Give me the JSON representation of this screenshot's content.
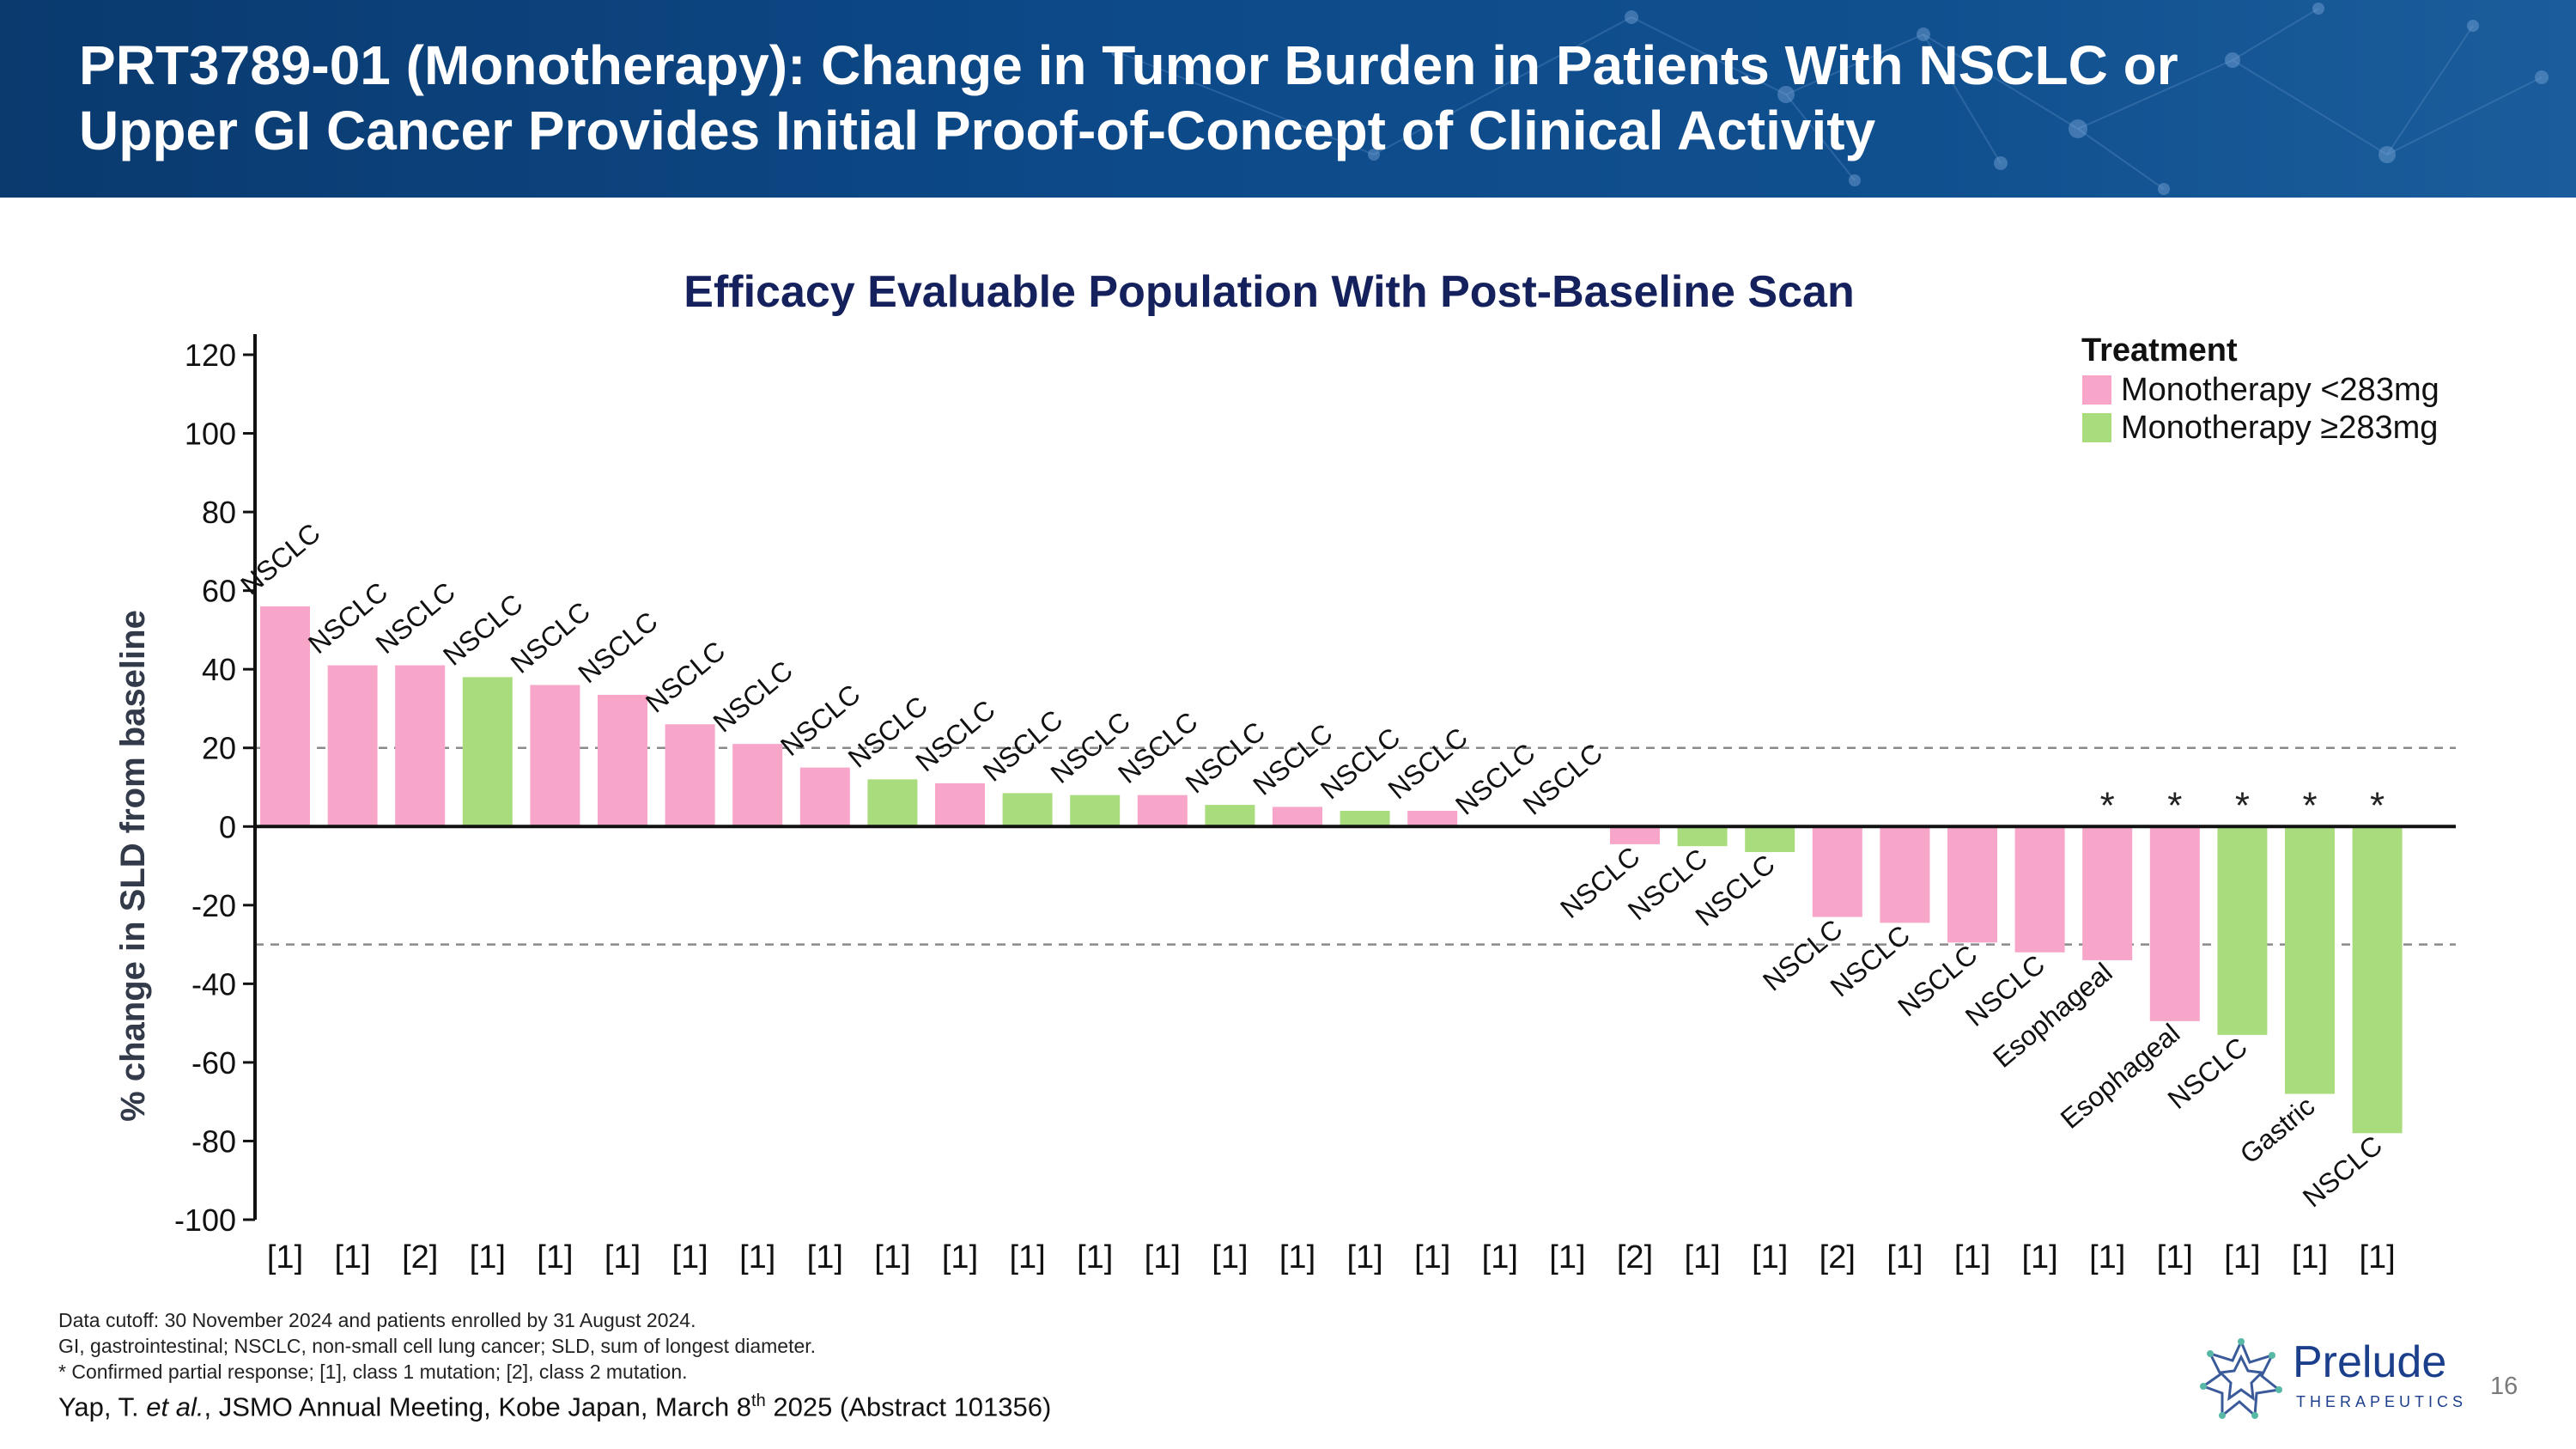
{
  "slide": {
    "title_line1": "PRT3789-01 (Monotherapy): Change in Tumor Burden in Patients With NSCLC or",
    "title_line2": "Upper GI Cancer Provides Initial Proof-of-Concept of Clinical Activity",
    "page_number": "16"
  },
  "chart_data": {
    "type": "bar",
    "title": "Efficacy Evaluable Population With Post-Baseline Scan",
    "xlabel": "",
    "ylabel": "% change in SLD from baseline",
    "ylim": [
      -100,
      120
    ],
    "yticks": [
      120,
      100,
      80,
      60,
      40,
      20,
      0,
      -20,
      -40,
      -60,
      -80,
      -100
    ],
    "reference_lines": [
      20,
      -30
    ],
    "legend": {
      "title": "Treatment",
      "position": "top-right",
      "entries": [
        {
          "label": "Monotherapy <283mg",
          "color": "#f7a5c9"
        },
        {
          "label": "Monotherapy ≥283mg",
          "color": "#a9dc7d"
        }
      ]
    },
    "bars": [
      {
        "value": 56,
        "group": "low",
        "tumor": "NSCLC",
        "mutation": "[1]",
        "confirmed_pr": false
      },
      {
        "value": 41,
        "group": "low",
        "tumor": "NSCLC",
        "mutation": "[1]",
        "confirmed_pr": false
      },
      {
        "value": 41,
        "group": "low",
        "tumor": "NSCLC",
        "mutation": "[2]",
        "confirmed_pr": false
      },
      {
        "value": 38,
        "group": "high",
        "tumor": "NSCLC",
        "mutation": "[1]",
        "confirmed_pr": false
      },
      {
        "value": 36,
        "group": "low",
        "tumor": "NSCLC",
        "mutation": "[1]",
        "confirmed_pr": false
      },
      {
        "value": 33.5,
        "group": "low",
        "tumor": "NSCLC",
        "mutation": "[1]",
        "confirmed_pr": false
      },
      {
        "value": 26,
        "group": "low",
        "tumor": "NSCLC",
        "mutation": "[1]",
        "confirmed_pr": false
      },
      {
        "value": 21,
        "group": "low",
        "tumor": "NSCLC",
        "mutation": "[1]",
        "confirmed_pr": false
      },
      {
        "value": 15,
        "group": "low",
        "tumor": "NSCLC",
        "mutation": "[1]",
        "confirmed_pr": false
      },
      {
        "value": 12,
        "group": "high",
        "tumor": "NSCLC",
        "mutation": "[1]",
        "confirmed_pr": false
      },
      {
        "value": 11,
        "group": "low",
        "tumor": "NSCLC",
        "mutation": "[1]",
        "confirmed_pr": false
      },
      {
        "value": 8.5,
        "group": "high",
        "tumor": "NSCLC",
        "mutation": "[1]",
        "confirmed_pr": false
      },
      {
        "value": 8,
        "group": "high",
        "tumor": "NSCLC",
        "mutation": "[1]",
        "confirmed_pr": false
      },
      {
        "value": 8,
        "group": "low",
        "tumor": "NSCLC",
        "mutation": "[1]",
        "confirmed_pr": false
      },
      {
        "value": 5.5,
        "group": "high",
        "tumor": "NSCLC",
        "mutation": "[1]",
        "confirmed_pr": false
      },
      {
        "value": 5,
        "group": "low",
        "tumor": "NSCLC",
        "mutation": "[1]",
        "confirmed_pr": false
      },
      {
        "value": 4,
        "group": "high",
        "tumor": "NSCLC",
        "mutation": "[1]",
        "confirmed_pr": false
      },
      {
        "value": 4,
        "group": "low",
        "tumor": "NSCLC",
        "mutation": "[1]",
        "confirmed_pr": false
      },
      {
        "value": 0,
        "group": "low",
        "tumor": "NSCLC",
        "mutation": "[1]",
        "confirmed_pr": false
      },
      {
        "value": 0,
        "group": "low",
        "tumor": "NSCLC",
        "mutation": "[1]",
        "confirmed_pr": false
      },
      {
        "value": -4.5,
        "group": "low",
        "tumor": "NSCLC",
        "mutation": "[2]",
        "confirmed_pr": false
      },
      {
        "value": -5,
        "group": "high",
        "tumor": "NSCLC",
        "mutation": "[1]",
        "confirmed_pr": false
      },
      {
        "value": -6.5,
        "group": "high",
        "tumor": "NSCLC",
        "mutation": "[1]",
        "confirmed_pr": false
      },
      {
        "value": -23,
        "group": "low",
        "tumor": "NSCLC",
        "mutation": "[2]",
        "confirmed_pr": false
      },
      {
        "value": -24.5,
        "group": "low",
        "tumor": "NSCLC",
        "mutation": "[1]",
        "confirmed_pr": false
      },
      {
        "value": -29.5,
        "group": "low",
        "tumor": "NSCLC",
        "mutation": "[1]",
        "confirmed_pr": false
      },
      {
        "value": -32,
        "group": "low",
        "tumor": "NSCLC",
        "mutation": "[1]",
        "confirmed_pr": false
      },
      {
        "value": -34,
        "group": "low",
        "tumor": "Esophageal",
        "mutation": "[1]",
        "confirmed_pr": true
      },
      {
        "value": -49.5,
        "group": "low",
        "tumor": "Esophageal",
        "mutation": "[1]",
        "confirmed_pr": true
      },
      {
        "value": -53,
        "group": "high",
        "tumor": "NSCLC",
        "mutation": "[1]",
        "confirmed_pr": true
      },
      {
        "value": -68,
        "group": "high",
        "tumor": "Gastric",
        "mutation": "[1]",
        "confirmed_pr": true
      },
      {
        "value": -78,
        "group": "high",
        "tumor": "NSCLC",
        "mutation": "[1]",
        "confirmed_pr": true
      }
    ],
    "pr_marker": "*"
  },
  "footnotes": {
    "line1": "Data cutoff: 30 November 2024 and patients enrolled by 31 August 2024.",
    "line2": "GI, gastrointestinal; NSCLC, non-small cell lung cancer; SLD, sum of longest diameter.",
    "line3": "* Confirmed partial response; [1], class 1 mutation; [2], class 2 mutation."
  },
  "citation": {
    "author": "Yap, T. ",
    "etal": "et al.",
    "meeting": ", JSMO Annual Meeting, Kobe Japan, March 8",
    "ordinal": "th",
    "rest": " 2025 (Abstract 101356)"
  },
  "logo": {
    "name": "Prelude",
    "sub": "THERAPEUTICS"
  },
  "colors": {
    "low_dose": "#f7a5c9",
    "high_dose": "#a9dc7d",
    "banner": "#0d4a8a",
    "title_text": "#14215c",
    "brand": "#1c3f8c"
  }
}
